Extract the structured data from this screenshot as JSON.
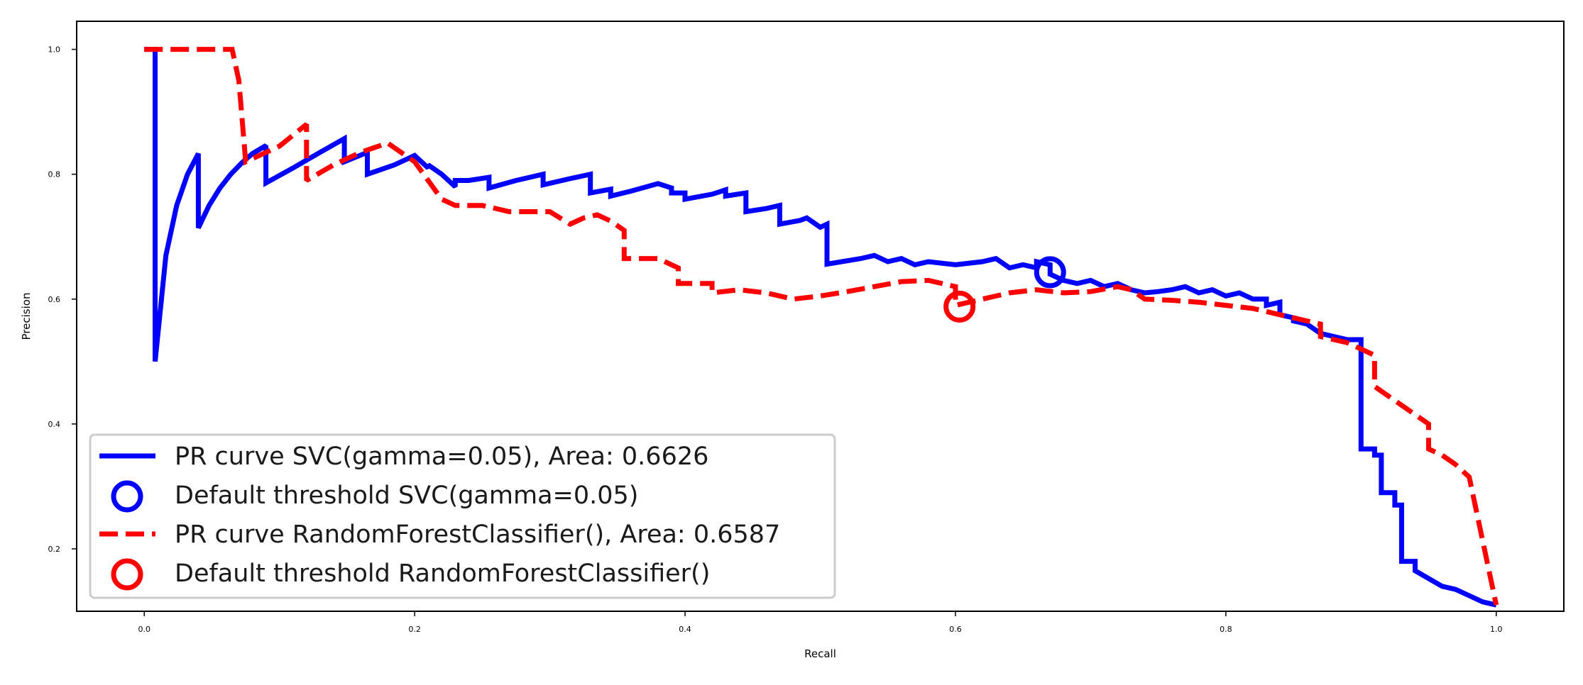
{
  "chart_data": {
    "type": "line",
    "title": "",
    "xlabel": "Recall",
    "ylabel": "Precision",
    "xlim": [
      -0.05,
      1.05
    ],
    "ylim": [
      0.1,
      1.045
    ],
    "xticks": [
      0.0,
      0.2,
      0.4,
      0.6,
      0.8,
      1.0
    ],
    "xtick_labels": [
      "0.0",
      "0.2",
      "0.4",
      "0.6",
      "0.8",
      "1.0"
    ],
    "yticks": [
      0.2,
      0.4,
      0.6,
      0.8,
      1.0
    ],
    "ytick_labels": [
      "0.2",
      "0.4",
      "0.6",
      "0.8",
      "1.0"
    ],
    "grid": false,
    "legend_position": "lower-left",
    "series": [
      {
        "name": "PR curve SVC(gamma=0.05), Area: 0.6626",
        "kind": "line",
        "style": "solid",
        "color": "#0000ff",
        "x": [
          0.0,
          0.008,
          0.008,
          0.016,
          0.024,
          0.032,
          0.04,
          0.04,
          0.048,
          0.056,
          0.064,
          0.072,
          0.08,
          0.09,
          0.09,
          0.11,
          0.13,
          0.148,
          0.148,
          0.165,
          0.165,
          0.185,
          0.2,
          0.2,
          0.21,
          0.21,
          0.22,
          0.22,
          0.23,
          0.23,
          0.24,
          0.255,
          0.255,
          0.275,
          0.295,
          0.295,
          0.315,
          0.33,
          0.33,
          0.345,
          0.345,
          0.36,
          0.38,
          0.39,
          0.39,
          0.4,
          0.4,
          0.42,
          0.43,
          0.43,
          0.445,
          0.445,
          0.46,
          0.47,
          0.47,
          0.485,
          0.49,
          0.5,
          0.505,
          0.505,
          0.53,
          0.54,
          0.55,
          0.56,
          0.57,
          0.58,
          0.6,
          0.62,
          0.63,
          0.64,
          0.65,
          0.66,
          0.66,
          0.67,
          0.67,
          0.68,
          0.69,
          0.7,
          0.71,
          0.72,
          0.73,
          0.74,
          0.75,
          0.76,
          0.77,
          0.78,
          0.79,
          0.8,
          0.81,
          0.82,
          0.83,
          0.83,
          0.84,
          0.84,
          0.85,
          0.85,
          0.86,
          0.87,
          0.88,
          0.89,
          0.9,
          0.9,
          0.91,
          0.91,
          0.915,
          0.915,
          0.925,
          0.925,
          0.93,
          0.93,
          0.94,
          0.94,
          0.96,
          0.97,
          0.98,
          0.99,
          1.0
        ],
        "y": [
          1.0,
          1.0,
          0.5,
          0.67,
          0.75,
          0.8,
          0.833,
          0.714,
          0.75,
          0.778,
          0.8,
          0.818,
          0.833,
          0.846,
          0.786,
          0.81,
          0.835,
          0.857,
          0.82,
          0.835,
          0.8,
          0.815,
          0.83,
          0.83,
          0.81,
          0.815,
          0.8,
          0.8,
          0.78,
          0.79,
          0.79,
          0.795,
          0.778,
          0.79,
          0.8,
          0.783,
          0.793,
          0.8,
          0.77,
          0.776,
          0.765,
          0.773,
          0.785,
          0.778,
          0.77,
          0.77,
          0.76,
          0.768,
          0.775,
          0.765,
          0.77,
          0.74,
          0.745,
          0.75,
          0.72,
          0.726,
          0.73,
          0.715,
          0.72,
          0.656,
          0.665,
          0.67,
          0.66,
          0.665,
          0.655,
          0.66,
          0.655,
          0.66,
          0.665,
          0.65,
          0.655,
          0.65,
          0.66,
          0.655,
          0.64,
          0.63,
          0.625,
          0.63,
          0.62,
          0.625,
          0.615,
          0.61,
          0.612,
          0.615,
          0.62,
          0.61,
          0.615,
          0.605,
          0.61,
          0.6,
          0.6,
          0.59,
          0.595,
          0.575,
          0.57,
          0.565,
          0.56,
          0.545,
          0.54,
          0.535,
          0.535,
          0.36,
          0.36,
          0.35,
          0.35,
          0.29,
          0.29,
          0.27,
          0.27,
          0.18,
          0.18,
          0.165,
          0.14,
          0.135,
          0.125,
          0.115,
          0.11
        ]
      },
      {
        "name": "Default threshold SVC(gamma=0.05)",
        "kind": "marker",
        "marker": "circle",
        "color": "#0000ff",
        "x": [
          0.67
        ],
        "y": [
          0.643
        ]
      },
      {
        "name": "PR curve RandomForestClassifier(), Area: 0.6587",
        "kind": "line",
        "style": "dashed",
        "color": "#ff0000",
        "x": [
          0.0,
          0.065,
          0.07,
          0.075,
          0.1,
          0.12,
          0.12,
          0.14,
          0.16,
          0.18,
          0.2,
          0.22,
          0.23,
          0.24,
          0.25,
          0.27,
          0.3,
          0.315,
          0.325,
          0.335,
          0.345,
          0.355,
          0.355,
          0.37,
          0.38,
          0.395,
          0.395,
          0.42,
          0.42,
          0.44,
          0.46,
          0.48,
          0.5,
          0.52,
          0.54,
          0.56,
          0.58,
          0.6,
          0.6,
          0.62,
          0.64,
          0.66,
          0.68,
          0.7,
          0.72,
          0.73,
          0.74,
          0.76,
          0.78,
          0.8,
          0.82,
          0.83,
          0.84,
          0.85,
          0.86,
          0.87,
          0.87,
          0.88,
          0.89,
          0.9,
          0.91,
          0.91,
          0.92,
          0.93,
          0.94,
          0.95,
          0.95,
          0.96,
          0.97,
          0.98,
          1.0
        ],
        "y": [
          1.0,
          1.0,
          0.95,
          0.82,
          0.845,
          0.88,
          0.79,
          0.815,
          0.835,
          0.85,
          0.82,
          0.76,
          0.75,
          0.75,
          0.75,
          0.74,
          0.74,
          0.72,
          0.73,
          0.735,
          0.725,
          0.71,
          0.665,
          0.665,
          0.665,
          0.65,
          0.625,
          0.625,
          0.61,
          0.615,
          0.61,
          0.6,
          0.605,
          0.612,
          0.62,
          0.628,
          0.63,
          0.62,
          0.59,
          0.6,
          0.61,
          0.615,
          0.61,
          0.612,
          0.62,
          0.615,
          0.6,
          0.598,
          0.595,
          0.59,
          0.585,
          0.58,
          0.575,
          0.57,
          0.565,
          0.56,
          0.54,
          0.535,
          0.53,
          0.52,
          0.51,
          0.46,
          0.445,
          0.43,
          0.415,
          0.4,
          0.36,
          0.35,
          0.335,
          0.315,
          0.11
        ]
      },
      {
        "name": "Default threshold RandomForestClassifier()",
        "kind": "marker",
        "marker": "circle",
        "color": "#ff0000",
        "x": [
          0.603
        ],
        "y": [
          0.588
        ]
      }
    ]
  }
}
